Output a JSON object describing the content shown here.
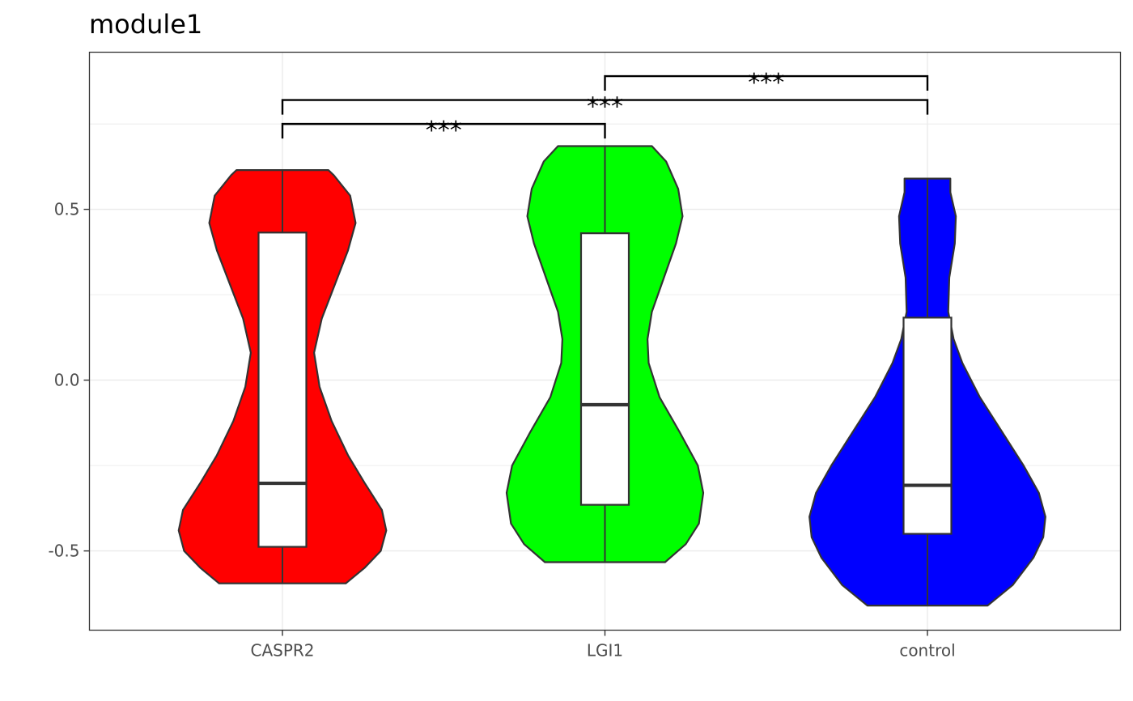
{
  "chart_data": {
    "type": "violin",
    "title": "module1",
    "xlabel": "",
    "ylabel": "",
    "categories": [
      "CASPR2",
      "LGI1",
      "control"
    ],
    "ylim": [
      -0.732,
      0.96
    ],
    "yticks": [
      -0.5,
      0.0,
      0.5
    ],
    "ytick_labels": [
      "-0.5",
      "0.0",
      "0.5"
    ],
    "grid": true,
    "series": [
      {
        "category": "CASPR2",
        "color": "#FF0000",
        "min": -0.595,
        "q1": -0.488,
        "median": -0.302,
        "q3": 0.432,
        "max": 0.615,
        "density": [
          [
            -0.595,
            0.58
          ],
          [
            -0.55,
            0.75
          ],
          [
            -0.5,
            0.9
          ],
          [
            -0.44,
            0.95
          ],
          [
            -0.38,
            0.91
          ],
          [
            -0.3,
            0.75
          ],
          [
            -0.22,
            0.6
          ],
          [
            -0.12,
            0.45
          ],
          [
            -0.02,
            0.34
          ],
          [
            0.08,
            0.29
          ],
          [
            0.18,
            0.36
          ],
          [
            0.28,
            0.48
          ],
          [
            0.38,
            0.6
          ],
          [
            0.46,
            0.67
          ],
          [
            0.54,
            0.62
          ],
          [
            0.6,
            0.47
          ],
          [
            0.615,
            0.42
          ]
        ]
      },
      {
        "category": "LGI1",
        "color": "#00FF00",
        "min": -0.533,
        "q1": -0.365,
        "median": -0.072,
        "q3": 0.43,
        "max": 0.685,
        "density": [
          [
            -0.533,
            0.55
          ],
          [
            -0.48,
            0.74
          ],
          [
            -0.42,
            0.86
          ],
          [
            -0.33,
            0.9
          ],
          [
            -0.25,
            0.85
          ],
          [
            -0.15,
            0.68
          ],
          [
            -0.05,
            0.5
          ],
          [
            0.05,
            0.4
          ],
          [
            0.12,
            0.39
          ],
          [
            0.2,
            0.43
          ],
          [
            0.3,
            0.54
          ],
          [
            0.4,
            0.65
          ],
          [
            0.48,
            0.71
          ],
          [
            0.56,
            0.67
          ],
          [
            0.64,
            0.56
          ],
          [
            0.685,
            0.43
          ]
        ]
      },
      {
        "category": "control",
        "color": "#0000FF",
        "min": -0.66,
        "q1": -0.45,
        "median": -0.308,
        "q3": 0.183,
        "max": 0.59,
        "density": [
          [
            -0.66,
            0.55
          ],
          [
            -0.6,
            0.78
          ],
          [
            -0.52,
            0.97
          ],
          [
            -0.46,
            1.06
          ],
          [
            -0.4,
            1.08
          ],
          [
            -0.33,
            1.02
          ],
          [
            -0.25,
            0.88
          ],
          [
            -0.15,
            0.68
          ],
          [
            -0.05,
            0.48
          ],
          [
            0.05,
            0.32
          ],
          [
            0.12,
            0.24
          ],
          [
            0.2,
            0.19
          ],
          [
            0.3,
            0.2
          ],
          [
            0.4,
            0.25
          ],
          [
            0.48,
            0.26
          ],
          [
            0.55,
            0.21
          ],
          [
            0.59,
            0.21
          ]
        ]
      }
    ],
    "annotations": [
      {
        "from": "CASPR2",
        "to": "LGI1",
        "label": "***",
        "y": 0.75
      },
      {
        "from": "CASPR2",
        "to": "control",
        "label": "***",
        "y": 0.82
      },
      {
        "from": "LGI1",
        "to": "control",
        "label": "***",
        "y": 0.89
      }
    ]
  }
}
